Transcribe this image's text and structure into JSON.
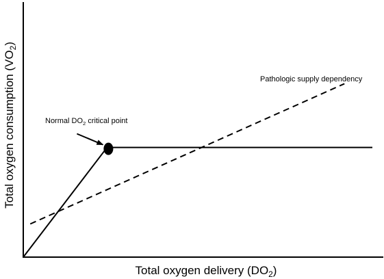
{
  "chart_data": {
    "type": "line",
    "title": "",
    "xlabel": {
      "main": "Total oxygen delivery (DO",
      "sub": "2",
      "tail": ")"
    },
    "ylabel": {
      "main": "Total oxygen consumption (VO",
      "sub": "2",
      "tail": ")"
    },
    "xlim": [
      0,
      100
    ],
    "ylim": [
      0,
      100
    ],
    "x_ticks": [],
    "y_ticks": [],
    "grid": false,
    "series": [
      {
        "style": "solid",
        "x": [
          0,
          24,
          100
        ],
        "y": [
          0,
          43,
          43
        ]
      },
      {
        "style": "dashed",
        "x": [
          2,
          92
        ],
        "y": [
          13,
          68
        ]
      }
    ],
    "annotations": [
      {
        "main": "Normal DO",
        "sub": "2",
        "tail": " critical point",
        "point": {
          "x": 24,
          "y": 43
        },
        "marker": "filled-ellipse",
        "arrow": true
      },
      {
        "main": "Pathologic supply dependency",
        "sub": "",
        "tail": ""
      }
    ]
  }
}
